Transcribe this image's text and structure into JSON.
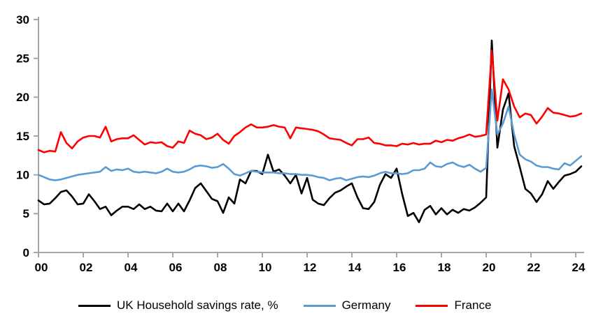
{
  "chart": {
    "y_ticks": [
      "0",
      "5",
      "10",
      "15",
      "20",
      "25",
      "30"
    ],
    "x_ticks": [
      "00",
      "02",
      "04",
      "06",
      "08",
      "10",
      "12",
      "14",
      "16",
      "18",
      "20",
      "22",
      "24"
    ],
    "axis_color": "#a6a6a6",
    "tick_label_color": "#000000",
    "background": "#ffffff"
  },
  "legend": {
    "items": [
      {
        "label": "UK Household savings rate, %",
        "color": "#000000"
      },
      {
        "label": "Germany",
        "color": "#5b9bd5"
      },
      {
        "label": "France",
        "color": "#ff0000"
      }
    ]
  },
  "chart_data": {
    "type": "line",
    "title": "",
    "xlabel": "",
    "ylabel": "",
    "x_start": 2000.0,
    "x_step": 0.25,
    "x_unit": "quarterly, years 2000-2024",
    "xlim": [
      2000,
      2024.4
    ],
    "ylim": [
      0,
      30
    ],
    "grid": false,
    "legend_position": "bottom",
    "series": [
      {
        "name": "UK Household savings rate, %",
        "color": "#000000",
        "values": [
          6.7,
          6.2,
          6.3,
          7.0,
          7.8,
          8.0,
          7.2,
          6.2,
          6.3,
          7.5,
          6.6,
          5.6,
          5.9,
          4.8,
          5.4,
          5.9,
          5.9,
          5.6,
          6.2,
          5.6,
          5.9,
          5.4,
          5.3,
          6.3,
          5.3,
          6.3,
          5.3,
          6.7,
          8.3,
          8.9,
          7.9,
          6.9,
          6.6,
          5.1,
          7.1,
          6.3,
          9.4,
          8.9,
          10.5,
          10.5,
          10.1,
          12.6,
          10.4,
          10.7,
          9.9,
          8.9,
          10.0,
          7.6,
          9.6,
          6.8,
          6.3,
          6.1,
          7.0,
          7.7,
          8.0,
          8.5,
          8.9,
          7.1,
          5.7,
          5.6,
          6.5,
          8.7,
          10.1,
          9.6,
          10.8,
          7.5,
          4.7,
          5.1,
          3.9,
          5.5,
          6.0,
          4.9,
          5.7,
          4.9,
          5.5,
          5.1,
          5.6,
          5.4,
          5.8,
          6.4,
          7.1,
          27.3,
          13.5,
          18.4,
          20.5,
          13.7,
          11.0,
          8.2,
          7.6,
          6.5,
          7.5,
          9.2,
          8.2,
          9.1,
          9.9,
          10.1,
          10.4,
          11.1
        ]
      },
      {
        "name": "Germany",
        "color": "#5b9bd5",
        "values": [
          10.0,
          9.7,
          9.4,
          9.3,
          9.4,
          9.6,
          9.8,
          10.0,
          10.1,
          10.2,
          10.3,
          10.4,
          11.0,
          10.5,
          10.7,
          10.6,
          10.8,
          10.4,
          10.3,
          10.4,
          10.3,
          10.2,
          10.4,
          10.8,
          10.4,
          10.3,
          10.4,
          10.7,
          11.1,
          11.2,
          11.1,
          10.9,
          11.0,
          11.4,
          10.8,
          10.1,
          9.9,
          10.2,
          10.5,
          10.4,
          10.3,
          10.3,
          10.3,
          10.2,
          10.2,
          10.1,
          10.1,
          10.0,
          10.0,
          9.9,
          9.7,
          9.6,
          9.3,
          9.5,
          9.6,
          9.3,
          9.5,
          9.7,
          9.8,
          9.7,
          9.9,
          10.2,
          10.4,
          10.2,
          10.2,
          10.1,
          10.2,
          10.6,
          10.6,
          10.8,
          11.6,
          11.1,
          11.0,
          11.4,
          11.6,
          11.2,
          11.0,
          11.3,
          10.8,
          10.4,
          10.9,
          21.0,
          15.2,
          16.6,
          18.8,
          15.2,
          12.6,
          12.0,
          11.7,
          11.2,
          11.0,
          11.0,
          10.8,
          10.7,
          11.5,
          11.2,
          11.8,
          12.4
        ]
      },
      {
        "name": "France",
        "color": "#ff0000",
        "values": [
          13.2,
          12.9,
          13.1,
          13.0,
          15.5,
          14.1,
          13.4,
          14.3,
          14.8,
          15.0,
          15.0,
          14.8,
          16.2,
          14.3,
          14.6,
          14.7,
          14.7,
          15.1,
          14.5,
          13.9,
          14.2,
          14.1,
          14.2,
          13.7,
          13.5,
          14.3,
          14.1,
          15.7,
          15.3,
          15.1,
          14.6,
          14.8,
          15.3,
          14.5,
          14.0,
          15.0,
          15.5,
          16.1,
          16.5,
          16.1,
          16.1,
          16.2,
          16.4,
          16.2,
          16.1,
          14.7,
          16.1,
          16.0,
          15.9,
          15.8,
          15.6,
          15.2,
          14.7,
          14.6,
          14.5,
          14.1,
          13.8,
          14.6,
          14.6,
          14.8,
          14.1,
          14.0,
          13.8,
          13.8,
          13.7,
          14.0,
          13.9,
          14.1,
          13.9,
          14.0,
          14.0,
          14.4,
          14.2,
          14.5,
          14.4,
          14.7,
          14.9,
          15.2,
          14.9,
          15.0,
          15.2,
          26.0,
          17.0,
          22.3,
          21.0,
          18.8,
          17.4,
          17.9,
          17.7,
          16.6,
          17.5,
          18.6,
          18.0,
          17.9,
          17.7,
          17.5,
          17.6,
          17.9
        ]
      }
    ]
  }
}
